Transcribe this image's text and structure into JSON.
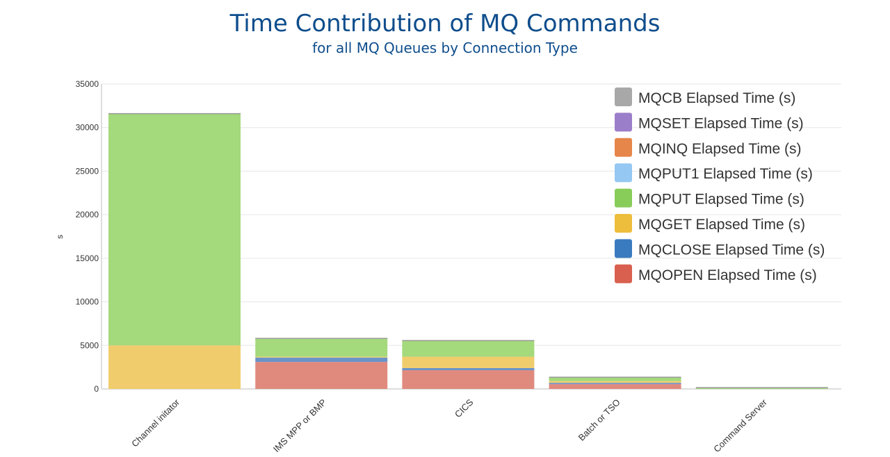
{
  "chart_data": {
    "type": "bar",
    "stacked": true,
    "title": "Time Contribution of MQ Commands",
    "subtitle": "for all MQ Queues by Connection Type",
    "xlabel": "",
    "ylabel": "s",
    "ylim": [
      0,
      35000
    ],
    "yticks": [
      0,
      5000,
      10000,
      15000,
      20000,
      25000,
      30000,
      35000
    ],
    "grid": true,
    "legend_position": "top-right",
    "categories": [
      "Channel initator",
      "IMS MPP or BMP",
      "CICS",
      "Batch or TSO",
      "Command Server"
    ],
    "series": [
      {
        "name": "MQOPEN Elapsed Time (s)",
        "color": "#e08a7e",
        "legend_color": "#d9604f",
        "values": [
          0,
          3100,
          2150,
          550,
          0
        ]
      },
      {
        "name": "MQCLOSE Elapsed Time (s)",
        "color": "#6a93c8",
        "legend_color": "#3a7bbf",
        "values": [
          0,
          500,
          250,
          150,
          0
        ]
      },
      {
        "name": "MQGET Elapsed Time (s)",
        "color": "#f0cc6c",
        "legend_color": "#edbd3c",
        "values": [
          5000,
          100,
          1300,
          200,
          0
        ]
      },
      {
        "name": "MQPUT Elapsed Time (s)",
        "color": "#a4d97c",
        "legend_color": "#88cc5a",
        "values": [
          26600,
          2100,
          1850,
          450,
          150
        ]
      },
      {
        "name": "MQPUT1 Elapsed Time (s)",
        "color": "#a8d3f5",
        "legend_color": "#95c8f2",
        "values": [
          0,
          0,
          0,
          0,
          0
        ]
      },
      {
        "name": "MQINQ Elapsed Time (s)",
        "color": "#f0a070",
        "legend_color": "#e6864a",
        "values": [
          0,
          0,
          0,
          0,
          0
        ]
      },
      {
        "name": "MQSET Elapsed Time (s)",
        "color": "#b39ad6",
        "legend_color": "#9b7ec9",
        "values": [
          0,
          0,
          0,
          0,
          0
        ]
      },
      {
        "name": "MQCB Elapsed Time (s)",
        "color": "#b5b5b5",
        "legend_color": "#a8a8a8",
        "values": [
          0,
          0,
          0,
          0,
          0
        ]
      }
    ]
  }
}
